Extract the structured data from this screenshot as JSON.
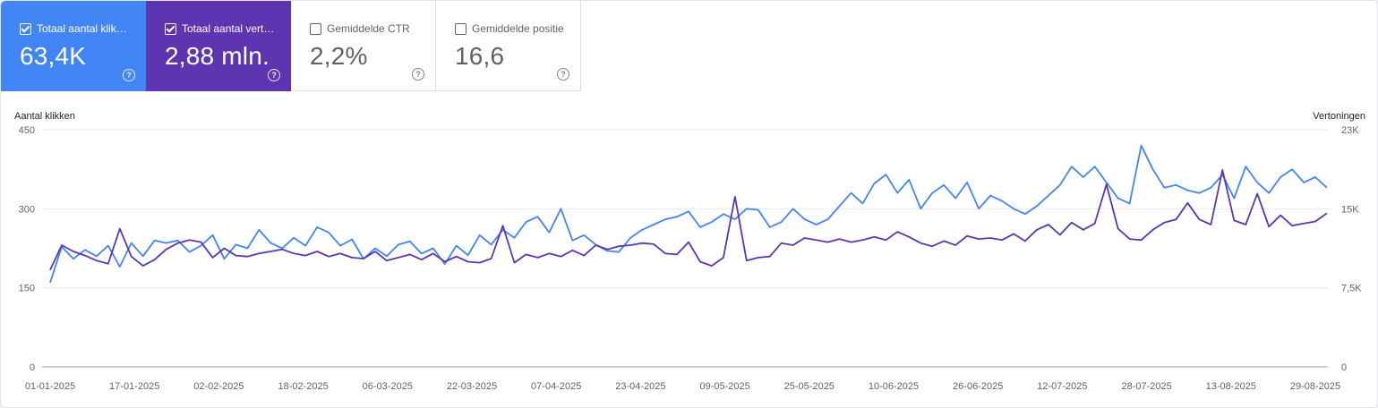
{
  "cards": [
    {
      "label": "Totaal aantal klik…",
      "value": "63,4K",
      "checked": true,
      "color": "#4285f4"
    },
    {
      "label": "Totaal aantal vert…",
      "value": "2,88 mln.",
      "checked": true,
      "color": "#5e35b1"
    },
    {
      "label": "Gemiddelde CTR",
      "value": "2,2%",
      "checked": false
    },
    {
      "label": "Gemiddelde positie",
      "value": "16,6",
      "checked": false
    }
  ],
  "help_glyph": "?",
  "chart_data": {
    "type": "line",
    "y_left_label": "Aantal klikken",
    "y_right_label": "Vertoningen",
    "y_left_ticks": [
      "450",
      "300",
      "150",
      "0"
    ],
    "y_right_ticks": [
      "23K",
      "15K",
      "7,5K",
      "0"
    ],
    "y_left_range": [
      0,
      450
    ],
    "y_right_range": [
      0,
      23000
    ],
    "x_tick_labels": [
      "01-01-2025",
      "17-01-2025",
      "02-02-2025",
      "18-02-2025",
      "06-03-2025",
      "22-03-2025",
      "07-04-2025",
      "23-04-2025",
      "09-05-2025",
      "25-05-2025",
      "10-06-2025",
      "26-06-2025",
      "12-07-2025",
      "28-07-2025",
      "13-08-2025",
      "29-08-2025"
    ],
    "series": [
      {
        "name": "Totaal aantal klikken",
        "axis": "left",
        "color": "#4285f4",
        "values": [
          160,
          228,
          205,
          222,
          210,
          230,
          190,
          235,
          210,
          240,
          235,
          240,
          218,
          230,
          250,
          205,
          232,
          225,
          260,
          235,
          225,
          245,
          230,
          265,
          255,
          230,
          242,
          205,
          225,
          210,
          232,
          238,
          215,
          225,
          195,
          230,
          212,
          250,
          232,
          260,
          245,
          275,
          285,
          255,
          300,
          240,
          250,
          232,
          220,
          218,
          245,
          260,
          270,
          280,
          285,
          295,
          265,
          275,
          290,
          280,
          300,
          298,
          265,
          275,
          300,
          280,
          270,
          280,
          305,
          330,
          310,
          348,
          365,
          330,
          355,
          300,
          330,
          345,
          320,
          350,
          300,
          325,
          315,
          300,
          290,
          305,
          325,
          345,
          380,
          360,
          380,
          350,
          320,
          310,
          420,
          375,
          340,
          345,
          335,
          330,
          340,
          365,
          320,
          380,
          350,
          330,
          360,
          375,
          350,
          360,
          340
        ]
      },
      {
        "name": "Totaal aantal vertoningen",
        "axis": "right",
        "color": "#5e35b1",
        "values": [
          9400,
          11800,
          11200,
          10800,
          10300,
          10000,
          13400,
          10700,
          9800,
          10400,
          11400,
          12000,
          12300,
          12100,
          10600,
          11500,
          10800,
          10700,
          11000,
          11200,
          11400,
          11000,
          10800,
          11200,
          10700,
          11000,
          10600,
          10500,
          11200,
          10300,
          10600,
          10900,
          10400,
          11000,
          10200,
          10700,
          10200,
          10100,
          10500,
          13700,
          10100,
          10900,
          10600,
          11000,
          10700,
          11300,
          10800,
          11800,
          11400,
          11700,
          11800,
          12000,
          11900,
          11000,
          10900,
          12100,
          10200,
          9800,
          10600,
          16500,
          10300,
          10600,
          10700,
          12000,
          11800,
          12500,
          12300,
          12100,
          12400,
          12100,
          12300,
          12600,
          12300,
          13100,
          12600,
          12000,
          11700,
          12200,
          11800,
          12700,
          12400,
          12500,
          12300,
          12900,
          12200,
          13300,
          13800,
          12800,
          14000,
          13300,
          13900,
          17700,
          13400,
          12400,
          12300,
          13300,
          14000,
          14300,
          15900,
          14300,
          13800,
          19100,
          14200,
          13800,
          16800,
          13600,
          14700,
          13700,
          13900,
          14100,
          14900
        ]
      }
    ]
  }
}
